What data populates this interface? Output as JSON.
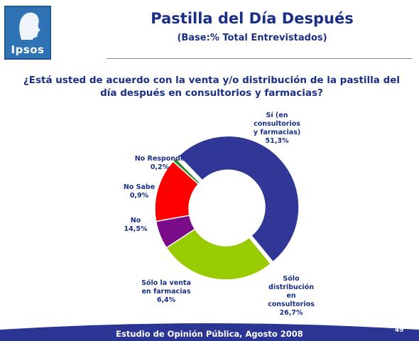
{
  "logo": {
    "text": "Ipsos"
  },
  "header": {
    "title": "Pastilla del Día Después",
    "subtitle": "(Base:% Total Entrevistados)"
  },
  "question": "¿Está usted de acuerdo con la venta y/o distribución de la pastilla del día después en consultorios y farmacias?",
  "chart_data": {
    "type": "pie",
    "donut": true,
    "slices": [
      {
        "label": "Sí (en\nconsultorios\ny farmacias)\n51,3%",
        "value": 51.3,
        "color": "#303796"
      },
      {
        "label": "Sólo\ndistribución\nen\nconsultorios\n26,7%",
        "value": 26.7,
        "color": "#99cc00"
      },
      {
        "label": "Sólo la venta\nen farmacias\n6,4%",
        "value": 6.4,
        "color": "#7a0c8a"
      },
      {
        "label": "No\n14,5%",
        "value": 14.5,
        "color": "#ff0000"
      },
      {
        "label": "No Sabe\n0,9%",
        "value": 0.9,
        "color": "#2a8a2a"
      },
      {
        "label": "No Responde\n0,2%",
        "value": 0.2,
        "color": "#9a9a9a"
      }
    ]
  },
  "footer": {
    "text": "Estudio de Opinión Pública, Agosto 2008",
    "page": "49",
    "band_color": "#2a3594"
  }
}
